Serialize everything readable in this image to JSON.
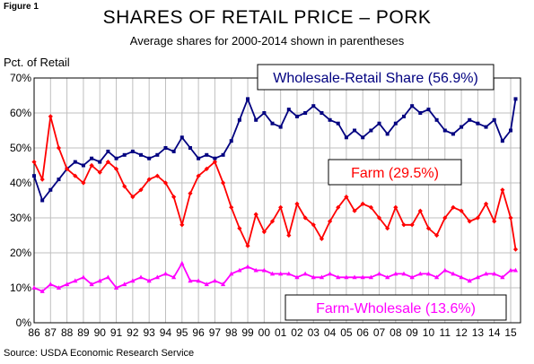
{
  "figure_label": "Figure 1",
  "source": "Source: USDA Economic Research Service",
  "colors": {
    "wholesale_retail": "#000080",
    "farm": "#ff0000",
    "farm_wholesale": "#ff00ff",
    "grid": "#bfbfbf"
  },
  "chart_data": {
    "type": "line",
    "title": "SHARES OF RETAIL PRICE – PORK",
    "subtitle": "Average shares for 2000-2014 shown in parentheses",
    "ylabel": "Pct. of Retail",
    "xlabel": "",
    "ylim": [
      0,
      70
    ],
    "xlim": [
      1986,
      2015.6
    ],
    "y_ticks": [
      "0%",
      "10%",
      "20%",
      "30%",
      "40%",
      "50%",
      "60%",
      "70%"
    ],
    "x_ticks": [
      "86",
      "87",
      "88",
      "89",
      "90",
      "91",
      "92",
      "93",
      "94",
      "95",
      "96",
      "97",
      "98",
      "99",
      "00",
      "01",
      "02",
      "03",
      "04",
      "05",
      "06",
      "07",
      "08",
      "09",
      "10",
      "11",
      "12",
      "13",
      "14",
      "15"
    ],
    "grid": true,
    "x": [
      1986.0,
      1986.5,
      1987.0,
      1987.5,
      1988.0,
      1988.5,
      1989.0,
      1989.5,
      1990.0,
      1990.5,
      1991.0,
      1991.5,
      1992.0,
      1992.5,
      1993.0,
      1993.5,
      1994.0,
      1994.5,
      1995.0,
      1995.5,
      1996.0,
      1996.5,
      1997.0,
      1997.5,
      1998.0,
      1998.5,
      1999.0,
      1999.5,
      2000.0,
      2000.5,
      2001.0,
      2001.5,
      2002.0,
      2002.5,
      2003.0,
      2003.5,
      2004.0,
      2004.5,
      2005.0,
      2005.5,
      2006.0,
      2006.5,
      2007.0,
      2007.5,
      2008.0,
      2008.5,
      2009.0,
      2009.5,
      2010.0,
      2010.5,
      2011.0,
      2011.5,
      2012.0,
      2012.5,
      2013.0,
      2013.5,
      2014.0,
      2014.5,
      2015.0,
      2015.3
    ],
    "series": [
      {
        "name": "Wholesale-Retail Share (56.9%)",
        "color": "#000080",
        "values": [
          42,
          35,
          38,
          41,
          44,
          46,
          45,
          47,
          46,
          49,
          47,
          48,
          49,
          48,
          47,
          48,
          50,
          49,
          53,
          50,
          47,
          48,
          47,
          48,
          52,
          58,
          64,
          58,
          60,
          57,
          56,
          61,
          59,
          60,
          62,
          60,
          58,
          57,
          53,
          55,
          53,
          55,
          57,
          54,
          57,
          59,
          62,
          60,
          61,
          58,
          55,
          54,
          56,
          58,
          57,
          56,
          58,
          52,
          55,
          64
        ]
      },
      {
        "name": "Farm  (29.5%)",
        "color": "#ff0000",
        "values": [
          46,
          41,
          59,
          50,
          44,
          42,
          40,
          45,
          43,
          46,
          44,
          39,
          36,
          38,
          41,
          42,
          40,
          36,
          28,
          37,
          42,
          44,
          46,
          40,
          33,
          27,
          22,
          31,
          26,
          29,
          33,
          25,
          34,
          30,
          28,
          24,
          29,
          33,
          36,
          32,
          34,
          33,
          30,
          27,
          33,
          28,
          28,
          32,
          27,
          25,
          30,
          33,
          32,
          29,
          30,
          34,
          29,
          38,
          30,
          21
        ]
      },
      {
        "name": "Farm-Wholesale (13.6%)",
        "color": "#ff00ff",
        "values": [
          10,
          9,
          11,
          10,
          11,
          12,
          13,
          11,
          12,
          13,
          10,
          11,
          12,
          13,
          12,
          13,
          14,
          13,
          17,
          12,
          12,
          11,
          12,
          11,
          14,
          15,
          16,
          15,
          15,
          14,
          14,
          14,
          13,
          14,
          13,
          13,
          14,
          13,
          13,
          13,
          13,
          13,
          14,
          13,
          14,
          14,
          13,
          14,
          14,
          13,
          15,
          14,
          13,
          12,
          13,
          14,
          14,
          13,
          15,
          15
        ]
      }
    ],
    "legend": [
      {
        "label": "Wholesale-Retail Share (56.9%)",
        "color": "#000080"
      },
      {
        "label": "Farm  (29.5%)",
        "color": "#ff0000"
      },
      {
        "label": "Farm-Wholesale (13.6%)",
        "color": "#ff00ff"
      }
    ]
  }
}
